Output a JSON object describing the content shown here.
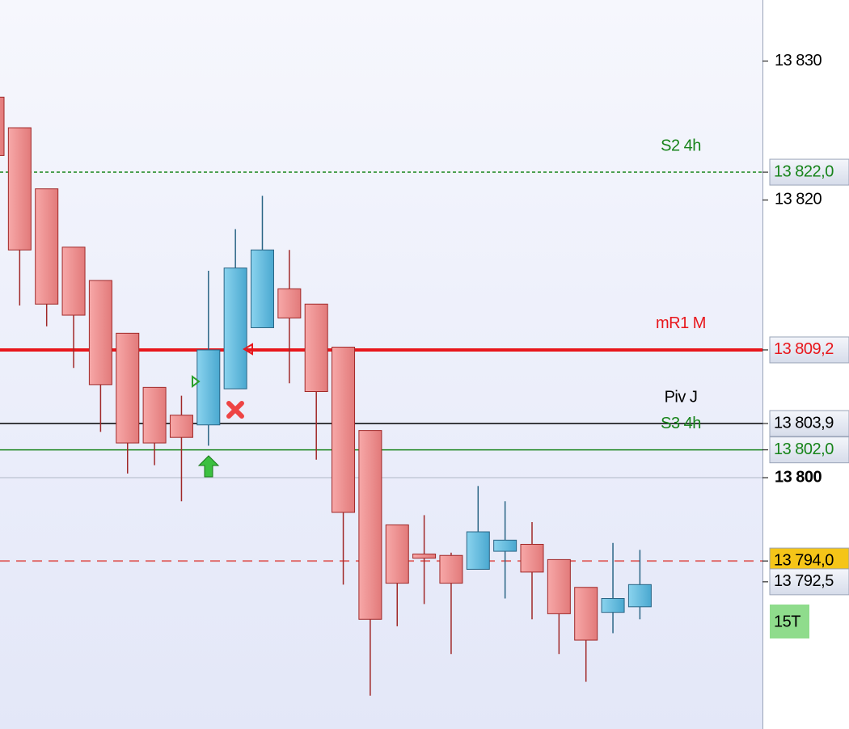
{
  "chart_data": {
    "type": "candlestick",
    "ylim": [
      13781.9,
      13834.4
    ],
    "yticks": [
      {
        "value": 13830,
        "label": "13 830"
      },
      {
        "value": 13820,
        "label": "13 820"
      },
      {
        "value": 13800,
        "label": "13 800",
        "emphasis": true
      }
    ],
    "up_color": "#6cc0e0",
    "down_color": "#f08c8c",
    "open": [
      13827.4,
      13825.2,
      13820.8,
      13816.6,
      13814.2,
      13810.4,
      13806.5,
      13804.5,
      13803.8,
      13806.4,
      13810.8,
      13813.6,
      13812.5,
      13809.4,
      13803.4,
      13796.6,
      13794.5,
      13794.4,
      13793.4,
      13794.7,
      13795.2,
      13794.1,
      13792.1,
      13790.3,
      13790.7
    ],
    "high": [
      13827.4,
      13825.2,
      13820.8,
      13816.6,
      13814.2,
      13810.4,
      13806.5,
      13805.9,
      13814.9,
      13817.9,
      13820.3,
      13816.4,
      13812.5,
      13809.4,
      13803.4,
      13796.6,
      13797.3,
      13794.6,
      13799.4,
      13798.3,
      13796.8,
      13794.1,
      13792.1,
      13795.3,
      13794.8
    ],
    "low": [
      13823.2,
      13812.4,
      13810.9,
      13807.9,
      13803.3,
      13800.3,
      13800.9,
      13798.3,
      13802.3,
      13806.4,
      13810.8,
      13806.8,
      13801.3,
      13792.3,
      13784.3,
      13789.3,
      13790.9,
      13787.3,
      13793.4,
      13791.3,
      13789.8,
      13787.3,
      13785.3,
      13788.8,
      13789.8
    ],
    "close": [
      13823.2,
      13816.4,
      13812.5,
      13811.7,
      13806.7,
      13802.5,
      13802.5,
      13802.9,
      13809.2,
      13815.1,
      13816.4,
      13811.5,
      13806.2,
      13797.5,
      13789.8,
      13792.4,
      13794.2,
      13792.4,
      13796.1,
      13795.5,
      13793.2,
      13790.2,
      13788.3,
      13791.3,
      13792.3
    ],
    "levels": [
      {
        "name": "S2 4h",
        "value": 13822.0,
        "tag": "13 822,0",
        "color": "#17841a",
        "style": "dotted"
      },
      {
        "name": "mR1 M",
        "value": 13809.2,
        "tag": "13 809,2",
        "color": "#e8161b",
        "style": "thick"
      },
      {
        "name": "Piv J",
        "value": 13803.9,
        "tag": "13 803,9",
        "color": "#000000",
        "style": "solid"
      },
      {
        "name": "S3 4h",
        "value": 13802.0,
        "tag": "13 802,0",
        "color": "#17841a",
        "style": "solid"
      },
      {
        "value": 13800,
        "color": "#c4cad8",
        "style": "solid"
      },
      {
        "value": 13794.0,
        "tag": "13 794,0",
        "color": "#e07070",
        "style": "dashed",
        "tag_fill": "#f5c518"
      },
      {
        "value": 13792.5,
        "tag": "13 792,5",
        "color": "#000000",
        "style": "none"
      }
    ],
    "badge": "15T"
  }
}
